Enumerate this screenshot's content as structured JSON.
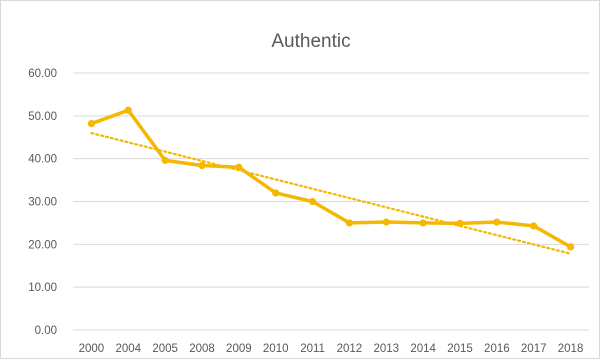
{
  "chart_data": {
    "type": "line",
    "title": "Authentic",
    "xlabel": "",
    "ylabel": "",
    "categories": [
      "2000",
      "2004",
      "2005",
      "2008",
      "2009",
      "2010",
      "2011",
      "2012",
      "2013",
      "2014",
      "2015",
      "2016",
      "2017",
      "2018"
    ],
    "series": [
      {
        "values": [
          48.2,
          51.3,
          39.6,
          38.4,
          38.0,
          32.0,
          30.0,
          25.0,
          25.2,
          25.0,
          24.9,
          25.2,
          24.3,
          19.4
        ],
        "color": "#f5b800",
        "marker": "circle"
      }
    ],
    "trendline": {
      "kind": "linear",
      "style": "dotted",
      "color": "#f5b800"
    },
    "y_ticks": [
      "0.00",
      "10.00",
      "20.00",
      "30.00",
      "40.00",
      "50.00",
      "60.00"
    ],
    "ylim": [
      0,
      60
    ],
    "grid": "horizontal",
    "legend": "none"
  }
}
